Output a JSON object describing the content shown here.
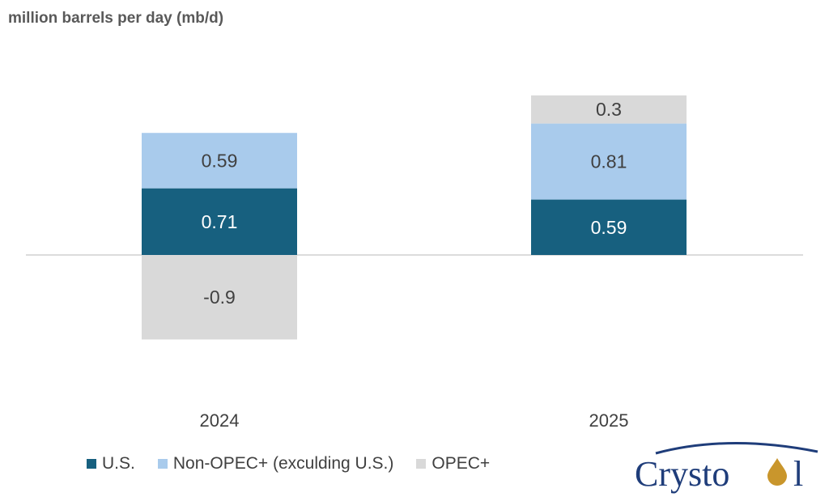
{
  "chart_data": {
    "type": "bar",
    "stacked": true,
    "title": "million barrels per day (mb/d)",
    "categories": [
      "2024",
      "2025"
    ],
    "series": [
      {
        "name": "U.S.",
        "values": [
          0.71,
          0.59
        ],
        "color": "#17607f"
      },
      {
        "name": "Non-OPEC+ (exculding U.S.)",
        "values": [
          0.59,
          0.81
        ],
        "color": "#a9cbec"
      },
      {
        "name": "OPEC+",
        "values": [
          -0.9,
          0.3
        ],
        "color": "#d9d9d9"
      }
    ],
    "data_labels": [
      [
        "0.71",
        "0.59"
      ],
      [
        "0.59",
        "0.81"
      ],
      [
        "-0.9",
        "0.3"
      ]
    ],
    "ylim": [
      -1.1,
      1.8
    ],
    "grid": false,
    "legend_position": "bottom-left"
  },
  "logo": {
    "text": "Crystol"
  }
}
